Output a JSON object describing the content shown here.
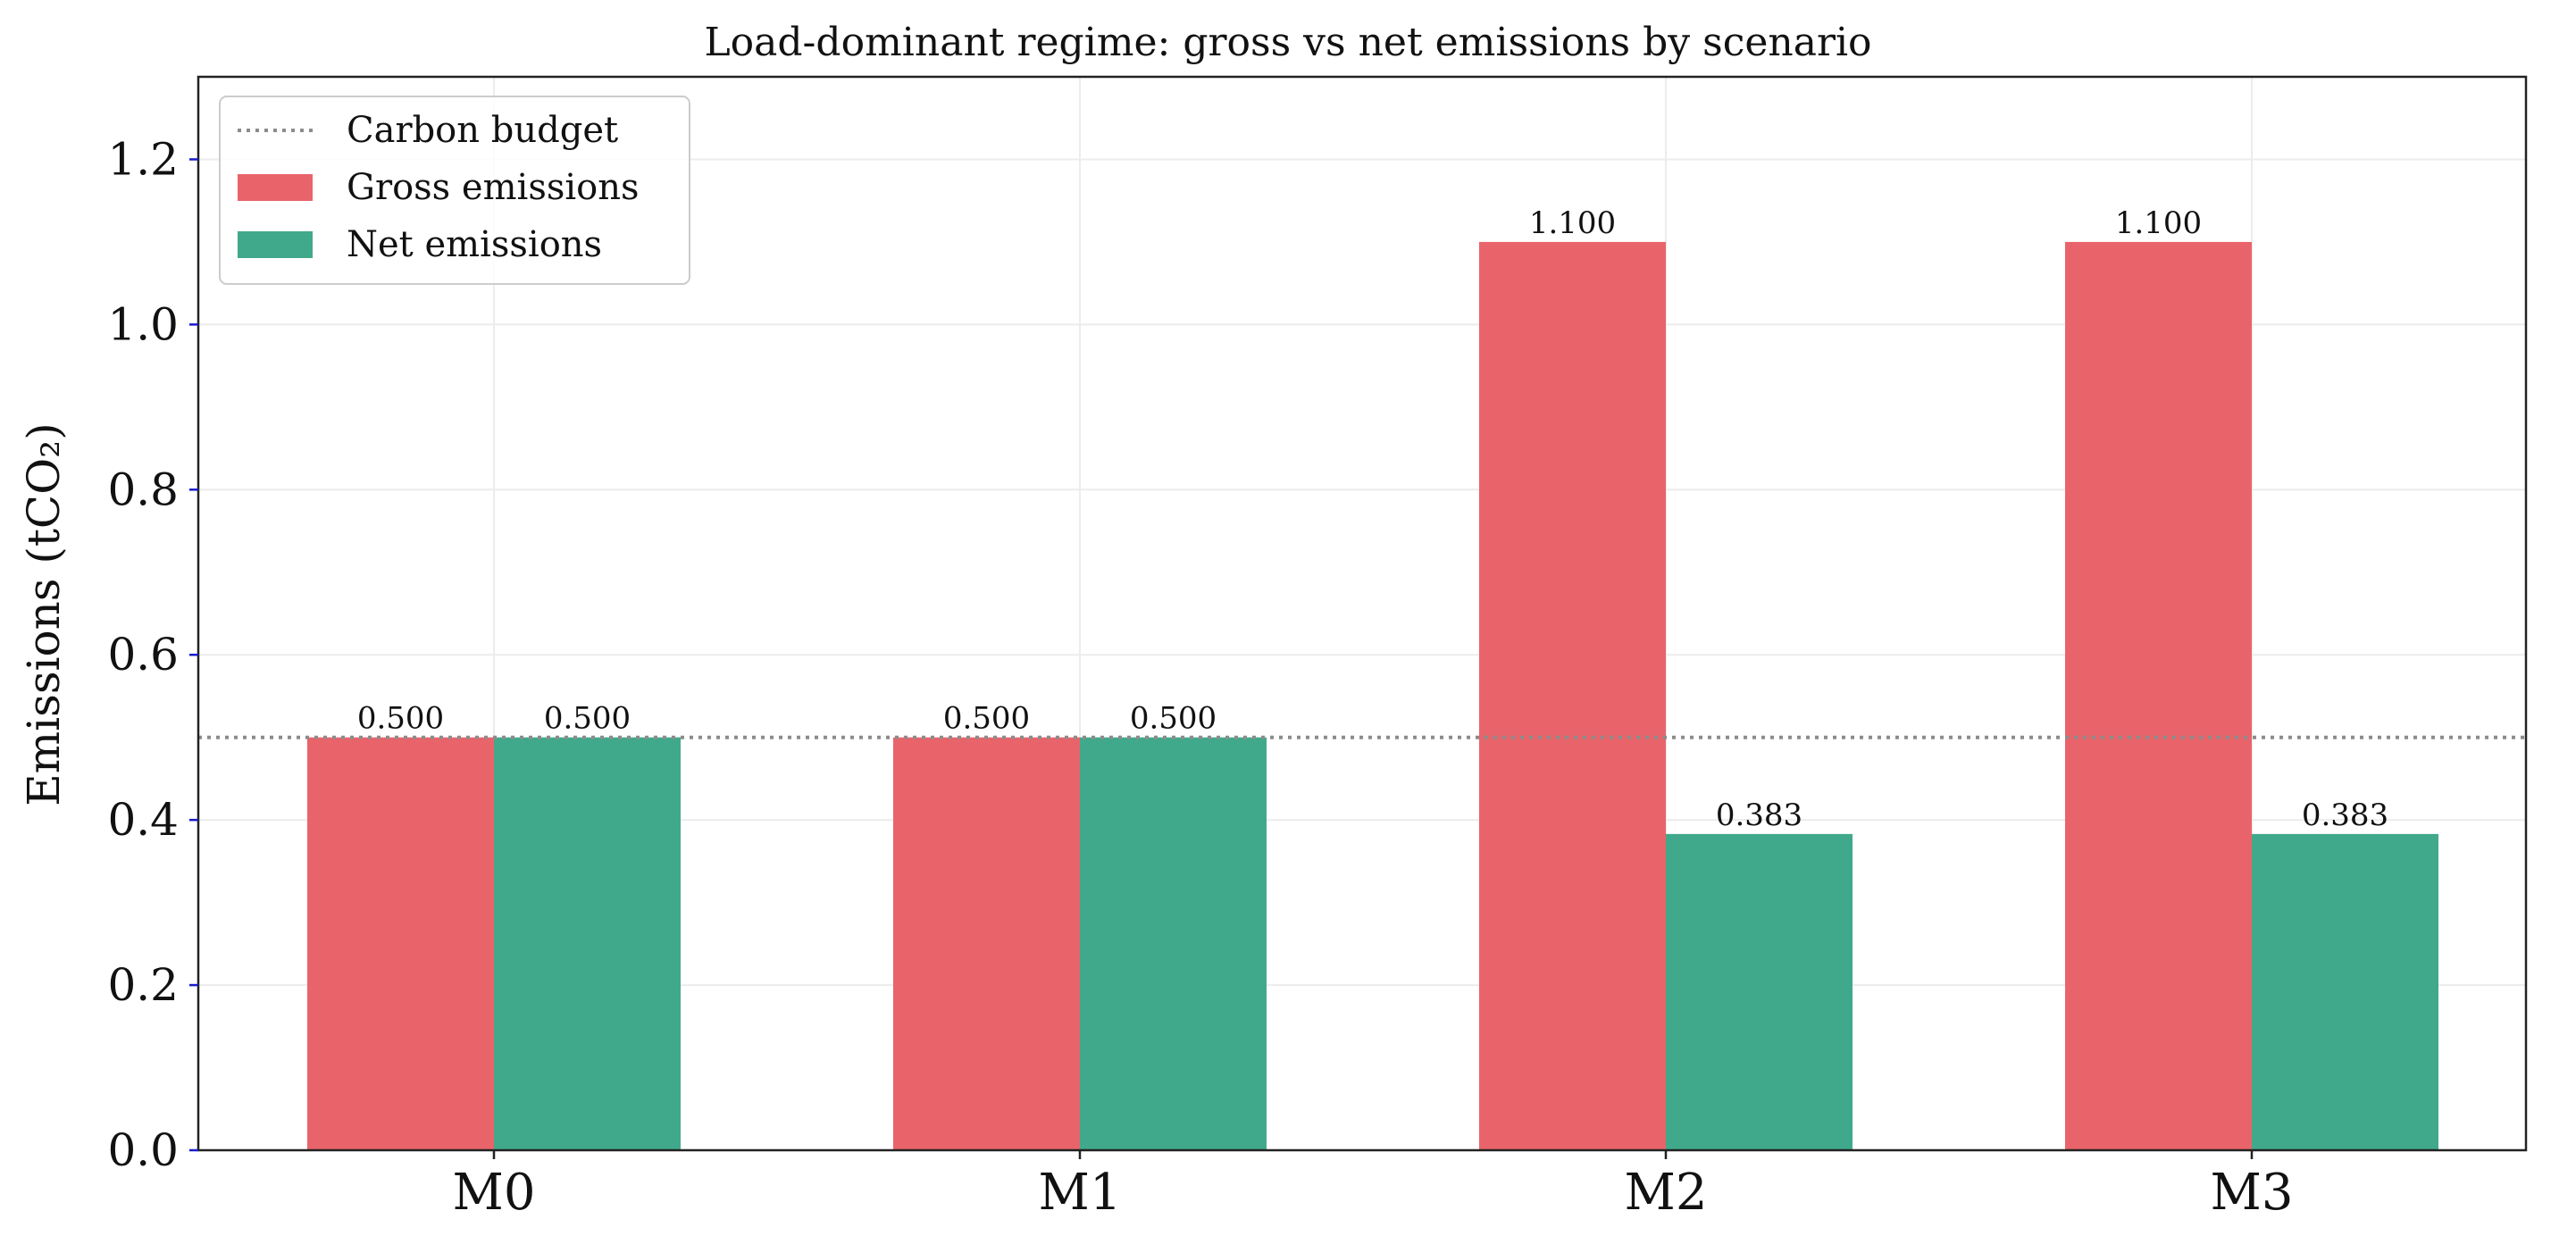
{
  "chart_data": {
    "type": "bar",
    "title": "Load-dominant regime: gross vs net emissions by scenario",
    "xlabel": "",
    "ylabel": "Emissions (tCO₂)",
    "categories": [
      "M0",
      "M1",
      "M2",
      "M3"
    ],
    "series": [
      {
        "name": "Gross emissions",
        "values": [
          0.5,
          0.5,
          1.1,
          1.1
        ],
        "labels": [
          "0.500",
          "0.500",
          "1.100",
          "1.100"
        ],
        "color": "#e8646a"
      },
      {
        "name": "Net emissions",
        "values": [
          0.5,
          0.5,
          0.383,
          0.383
        ],
        "labels": [
          "0.500",
          "0.500",
          "0.383",
          "0.383"
        ],
        "color": "#41a98b"
      }
    ],
    "reference_line": {
      "name": "Carbon budget",
      "value": 0.5,
      "style": "dotted",
      "color": "#8c8c8c"
    },
    "ylim": [
      0,
      1.3
    ],
    "yticks": [
      0.0,
      0.2,
      0.4,
      0.6,
      0.8,
      1.0,
      1.2
    ],
    "ytick_labels": [
      "0.0",
      "0.2",
      "0.4",
      "0.6",
      "0.8",
      "1.0",
      "1.2"
    ],
    "grid": true,
    "legend_position": "top-left"
  }
}
